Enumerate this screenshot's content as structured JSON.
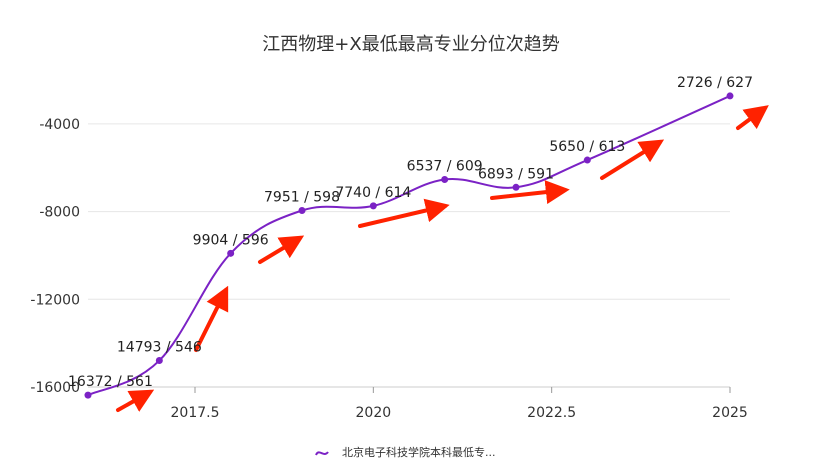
{
  "chart_data": {
    "type": "line",
    "title": "江西物理+X最低最高专业分位次趋势",
    "x": [
      2016,
      2017,
      2018,
      2019,
      2020,
      2021,
      2022,
      2023,
      2025
    ],
    "series": [
      {
        "name": "北京电子科技学院本科最低专...",
        "values": [
          -16372,
          -14793,
          -9904,
          -7951,
          -7740,
          -6537,
          -6893,
          -5650,
          -2726
        ],
        "labels": [
          "16372 / 561",
          "14793 / 546",
          "9904 / 596",
          "7951 / 598",
          "7740 / 614",
          "6537 / 609",
          "6893 / 591",
          "5650 / 613",
          "2726 / 627"
        ]
      }
    ],
    "xlim": [
      2016,
      2025
    ],
    "ylim": [
      -16000,
      -2000
    ],
    "xticks": [
      "2017.5",
      "2020",
      "2022.5",
      "2025"
    ],
    "yticks": [
      "-4000",
      "-8000",
      "-12000",
      "-16000"
    ],
    "grid": true,
    "legend_position": "bottom",
    "colors": {
      "line": "#7b22c5",
      "arrow": "#ff2200",
      "grid": "#e6e6e6"
    },
    "annotations": [
      "up-right-arrow",
      "up-right-arrow",
      "up-right-arrow",
      "up-right-arrow",
      "up-right-arrow",
      "up-right-arrow",
      "up-right-arrow"
    ]
  }
}
